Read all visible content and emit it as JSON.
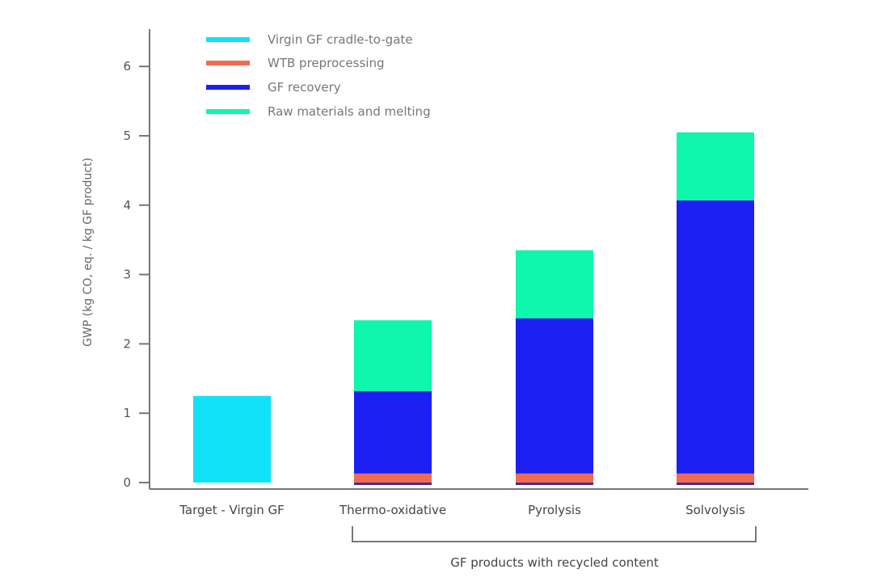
{
  "chart_data": {
    "type": "bar",
    "stacked": true,
    "ylabel": "GWP (kg CO, eq. / kg GF product)",
    "ylim": [
      0,
      6.5
    ],
    "yticks": [
      "0",
      "1",
      "2",
      "3",
      "4",
      "5",
      "6"
    ],
    "grid": false,
    "legend_position": "top-left",
    "categories": [
      "Target - Virgin GF",
      "Thermo-oxidative",
      "Pyrolysis",
      "Solvolysis"
    ],
    "group_label": "GF products with recycled content",
    "series": [
      {
        "name": "Virgin GF cradle-to-gate",
        "color": "#12e2f7",
        "values": [
          1.25,
          0,
          0,
          0
        ]
      },
      {
        "name": "WTB preprocessing",
        "color": "#f26b50",
        "values": [
          0,
          0.13,
          0.13,
          0.13
        ]
      },
      {
        "name": "GF recovery",
        "color": "#1b1ff2",
        "values": [
          0,
          1.19,
          2.24,
          3.94
        ]
      },
      {
        "name": "Raw materials and melting",
        "color": "#0ef7ad",
        "values": [
          0,
          1.02,
          0.98,
          0.98
        ]
      }
    ],
    "baseline_strip": {
      "color": "#3a2e9c",
      "values": [
        0,
        0.03,
        0.03,
        0.03
      ]
    }
  }
}
